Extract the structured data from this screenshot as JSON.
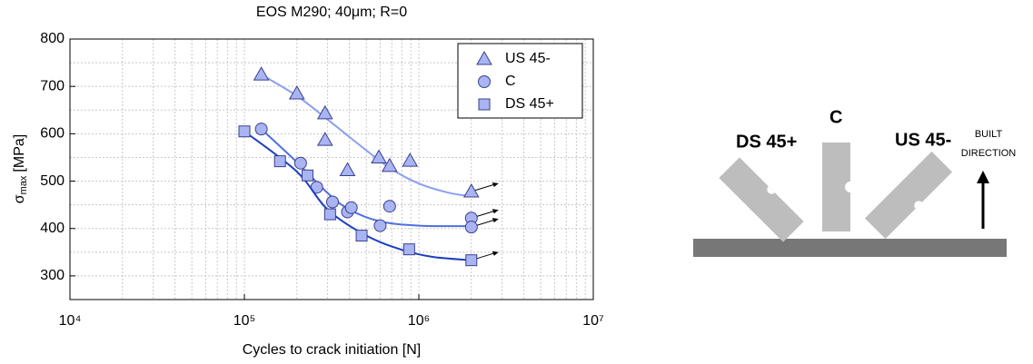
{
  "chart_data": {
    "type": "scatter",
    "title": "EOS M290; 40μm; R=0",
    "x_label": "Cycles to crack initiation [N]",
    "y_label": {
      "symbol": "σ",
      "subscript": "max",
      "unit": "[MPa]"
    },
    "xlog": true,
    "grid": true,
    "legend": "top-right",
    "xlim": [
      10000,
      10000000
    ],
    "xticks": [
      {
        "value": 10000,
        "label": "10⁴"
      },
      {
        "value": 100000,
        "label": "10⁵"
      },
      {
        "value": 1000000,
        "label": "10⁶"
      },
      {
        "value": 10000000,
        "label": "10⁷"
      }
    ],
    "ylim": [
      250,
      800
    ],
    "yticks": [
      300,
      400,
      500,
      600,
      700,
      800
    ],
    "series": [
      {
        "name": "US 45-",
        "marker": "triangle",
        "color": "#a9b4f2",
        "fit_color": "#8c9ff0",
        "x": [
          125000,
          200000,
          290000,
          290000,
          390000,
          590000,
          680000,
          890000,
          2000000
        ],
        "values": [
          725,
          685,
          643,
          587,
          523,
          550,
          532,
          543,
          478
        ],
        "fit_x": [
          125000,
          200000,
          300000,
          500000,
          700000,
          1000000,
          1500000,
          2000000
        ],
        "fit_values": [
          725,
          680,
          630,
          565,
          525,
          495,
          475,
          468
        ]
      },
      {
        "name": "C",
        "marker": "circle",
        "color": "#a9b4f2",
        "fit_color": "#4f6fe0",
        "x": [
          125000,
          210000,
          260000,
          320000,
          390000,
          410000,
          600000,
          680000,
          2000000,
          2000000
        ],
        "values": [
          610,
          538,
          487,
          456,
          435,
          444,
          406,
          447,
          422,
          403
        ],
        "fit_x": [
          125000,
          200000,
          300000,
          400000,
          600000,
          1000000,
          2000000
        ],
        "fit_values": [
          610,
          540,
          475,
          440,
          415,
          406,
          405
        ]
      },
      {
        "name": "DS 45+",
        "marker": "square",
        "color": "#a9b4f2",
        "fit_color": "#1c3fbf",
        "x": [
          100000,
          160000,
          230000,
          310000,
          470000,
          880000,
          2000000
        ],
        "values": [
          605,
          542,
          512,
          430,
          385,
          356,
          333
        ],
        "fit_x": [
          100000,
          200000,
          300000,
          500000,
          800000,
          1200000,
          2000000
        ],
        "fit_values": [
          605,
          520,
          440,
          385,
          355,
          340,
          333
        ]
      }
    ]
  },
  "diagram": {
    "labels": {
      "ds": "DS 45+",
      "c": "C",
      "us": "US 45-"
    },
    "built_direction": [
      "BUILT",
      "DIRECTION"
    ]
  }
}
